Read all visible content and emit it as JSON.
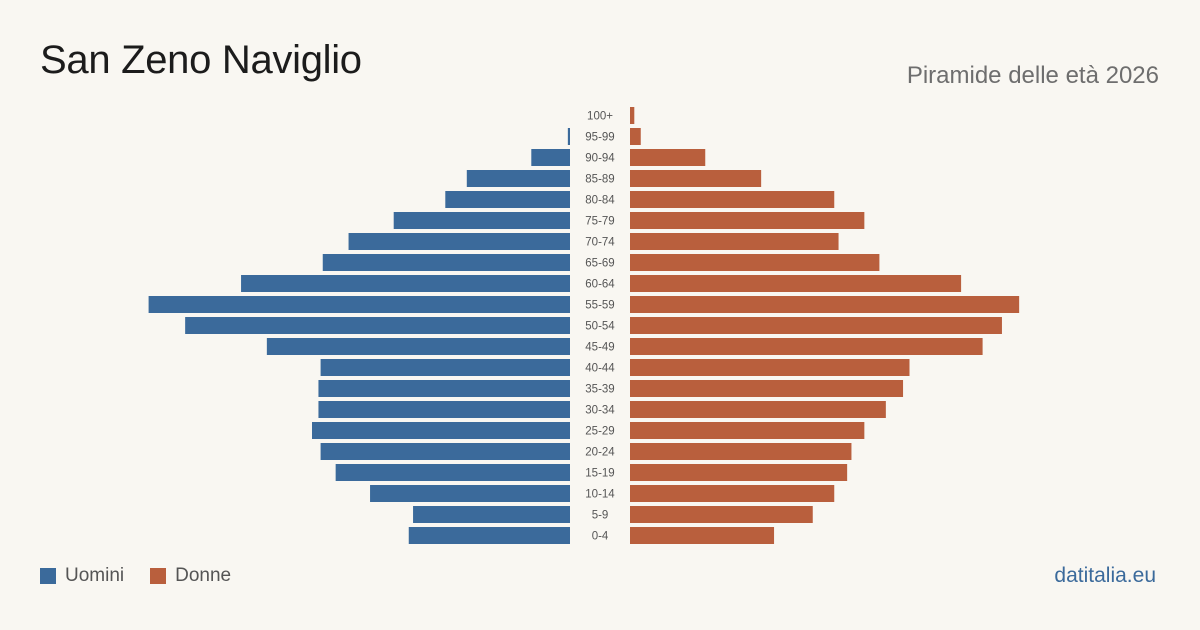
{
  "header": {
    "title": "San Zeno Naviglio",
    "subtitle": "Piramide delle età 2026"
  },
  "legend": {
    "male_label": "Uomini",
    "female_label": "Donne"
  },
  "brand": "datitalia.eu",
  "colors": {
    "male": "#3b6a9b",
    "female": "#b95f3d",
    "background": "#f9f7f2",
    "age_label": "#555555"
  },
  "chart_data": {
    "type": "bar",
    "orientation": "horizontal-pyramid",
    "categories": [
      "100+",
      "95-99",
      "90-94",
      "85-89",
      "80-84",
      "75-79",
      "70-74",
      "65-69",
      "60-64",
      "55-59",
      "50-54",
      "45-49",
      "40-44",
      "35-39",
      "30-34",
      "25-29",
      "20-24",
      "15-19",
      "10-14",
      "5-9",
      "0-4"
    ],
    "series": [
      {
        "name": "Uomini",
        "values": [
          0,
          1,
          18,
          48,
          58,
          82,
          103,
          115,
          153,
          196,
          179,
          141,
          116,
          117,
          117,
          120,
          116,
          109,
          93,
          73,
          75
        ]
      },
      {
        "name": "Donne",
        "values": [
          2,
          5,
          35,
          61,
          95,
          109,
          97,
          116,
          154,
          181,
          173,
          164,
          130,
          127,
          119,
          109,
          103,
          101,
          95,
          85,
          67
        ]
      }
    ],
    "x_max": 200,
    "legend_position": "bottom-left"
  }
}
